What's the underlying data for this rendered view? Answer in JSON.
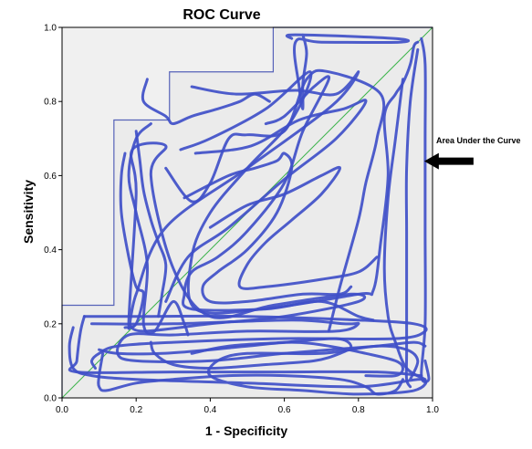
{
  "chart_data": {
    "type": "line",
    "title": "ROC Curve",
    "xlabel": "1 - Specificity",
    "ylabel": "Sensitivity",
    "xlim": [
      0,
      1
    ],
    "ylim": [
      0,
      1
    ],
    "xticks": [
      "0.0",
      "0.2",
      "0.4",
      "0.6",
      "0.8",
      "1.0"
    ],
    "yticks": [
      "0.0",
      "0.2",
      "0.4",
      "0.6",
      "0.8",
      "1.0"
    ],
    "grid": false,
    "legend": "none",
    "colors": {
      "plot_background": "#f0f0f0",
      "roc_line": "#5662b8",
      "reference_line": "#3cb44b",
      "scribble": "#3f4fc8",
      "arrow": "#000000"
    },
    "series": [
      {
        "x": [
          0,
          0,
          0.14,
          0.14,
          0.29,
          0.29,
          0.57,
          0.57,
          1.0
        ],
        "y": [
          0,
          0.25,
          0.25,
          0.75,
          0.75,
          0.88,
          0.88,
          1.0,
          1.0
        ]
      },
      {
        "x": [
          0,
          1
        ],
        "y": [
          0,
          1
        ]
      }
    ],
    "shaded_region": {
      "x": [
        0,
        0,
        0.14,
        0.14,
        0.29,
        0.29,
        0.57,
        0.57,
        1.0,
        1.0
      ],
      "y": [
        0,
        0.25,
        0.25,
        0.75,
        0.75,
        0.88,
        0.88,
        1.0,
        1.0,
        0
      ]
    },
    "scribble_paths": [
      [
        [
          0.62,
          0.97
        ],
        [
          0.63,
          0.98
        ],
        [
          0.9,
          0.97
        ],
        [
          0.91,
          0.96
        ],
        [
          0.7,
          0.96
        ],
        [
          0.63,
          0.96
        ],
        [
          0.64,
          0.84
        ],
        [
          0.65,
          0.78
        ],
        [
          0.65,
          0.85
        ],
        [
          0.66,
          0.93
        ],
        [
          0.65,
          0.98
        ]
      ],
      [
        [
          0.35,
          0.84
        ],
        [
          0.47,
          0.82
        ],
        [
          0.63,
          0.83
        ],
        [
          0.74,
          0.82
        ],
        [
          0.8,
          0.88
        ],
        [
          0.73,
          0.79
        ],
        [
          0.5,
          0.62
        ],
        [
          0.28,
          0.46
        ],
        [
          0.2,
          0.28
        ],
        [
          0.18,
          0.2
        ],
        [
          0.2,
          0.55
        ],
        [
          0.19,
          0.67
        ],
        [
          0.28,
          0.68
        ],
        [
          0.24,
          0.6
        ],
        [
          0.3,
          0.35
        ],
        [
          0.4,
          0.22
        ],
        [
          0.57,
          0.25
        ],
        [
          0.78,
          0.28
        ],
        [
          0.8,
          0.26
        ],
        [
          0.6,
          0.22
        ],
        [
          0.4,
          0.2
        ],
        [
          0.22,
          0.18
        ],
        [
          0.18,
          0.2
        ]
      ],
      [
        [
          0.36,
          0.66
        ],
        [
          0.51,
          0.68
        ],
        [
          0.64,
          0.75
        ],
        [
          0.76,
          0.78
        ],
        [
          0.82,
          0.8
        ],
        [
          0.74,
          0.7
        ],
        [
          0.6,
          0.59
        ],
        [
          0.45,
          0.46
        ],
        [
          0.34,
          0.38
        ],
        [
          0.28,
          0.26
        ]
      ],
      [
        [
          0.32,
          0.67
        ],
        [
          0.4,
          0.7
        ],
        [
          0.55,
          0.78
        ],
        [
          0.67,
          0.88
        ],
        [
          0.62,
          0.75
        ],
        [
          0.5,
          0.62
        ],
        [
          0.4,
          0.5
        ],
        [
          0.35,
          0.38
        ],
        [
          0.36,
          0.24
        ],
        [
          0.54,
          0.24
        ],
        [
          0.8,
          0.28
        ],
        [
          0.84,
          0.29
        ],
        [
          0.86,
          0.42
        ],
        [
          0.88,
          0.6
        ],
        [
          0.87,
          0.76
        ],
        [
          0.9,
          0.82
        ],
        [
          0.92,
          0.85
        ],
        [
          0.94,
          0.9
        ],
        [
          0.95,
          0.95
        ],
        [
          0.96,
          0.96
        ]
      ],
      [
        [
          0.28,
          0.62
        ],
        [
          0.35,
          0.53
        ],
        [
          0.4,
          0.58
        ],
        [
          0.45,
          0.7
        ],
        [
          0.5,
          0.71
        ],
        [
          0.6,
          0.72
        ],
        [
          0.66,
          0.86
        ],
        [
          0.72,
          0.88
        ],
        [
          0.86,
          0.82
        ],
        [
          0.85,
          0.7
        ],
        [
          0.82,
          0.58
        ],
        [
          0.8,
          0.48
        ],
        [
          0.75,
          0.3
        ],
        [
          0.72,
          0.18
        ]
      ],
      [
        [
          0.24,
          0.74
        ],
        [
          0.2,
          0.7
        ],
        [
          0.18,
          0.6
        ],
        [
          0.2,
          0.5
        ],
        [
          0.23,
          0.36
        ],
        [
          0.22,
          0.2
        ],
        [
          0.25,
          0.18
        ],
        [
          0.3,
          0.26
        ],
        [
          0.33,
          0.2
        ],
        [
          0.34,
          0.17
        ]
      ],
      [
        [
          0.17,
          0.66
        ],
        [
          0.16,
          0.6
        ],
        [
          0.16,
          0.5
        ],
        [
          0.18,
          0.38
        ],
        [
          0.2,
          0.3
        ],
        [
          0.22,
          0.28
        ],
        [
          0.2,
          0.2
        ],
        [
          0.17,
          0.19
        ]
      ],
      [
        [
          0.55,
          0.74
        ],
        [
          0.6,
          0.76
        ],
        [
          0.68,
          0.84
        ],
        [
          0.72,
          0.86
        ],
        [
          0.65,
          0.72
        ],
        [
          0.6,
          0.58
        ],
        [
          0.5,
          0.45
        ],
        [
          0.42,
          0.38
        ],
        [
          0.35,
          0.34
        ],
        [
          0.33,
          0.28
        ],
        [
          0.35,
          0.24
        ],
        [
          0.55,
          0.24
        ],
        [
          0.7,
          0.26
        ],
        [
          0.8,
          0.22
        ],
        [
          0.84,
          0.21
        ]
      ],
      [
        [
          0.23,
          0.86
        ],
        [
          0.22,
          0.8
        ],
        [
          0.28,
          0.76
        ],
        [
          0.3,
          0.74
        ],
        [
          0.35,
          0.76
        ],
        [
          0.42,
          0.78
        ],
        [
          0.48,
          0.8
        ],
        [
          0.52,
          0.82
        ],
        [
          0.56,
          0.8
        ]
      ],
      [
        [
          0.33,
          0.54
        ],
        [
          0.45,
          0.6
        ],
        [
          0.52,
          0.62
        ],
        [
          0.58,
          0.64
        ],
        [
          0.6,
          0.66
        ],
        [
          0.62,
          0.62
        ],
        [
          0.58,
          0.5
        ],
        [
          0.5,
          0.4
        ],
        [
          0.42,
          0.34
        ],
        [
          0.38,
          0.3
        ],
        [
          0.4,
          0.26
        ],
        [
          0.5,
          0.26
        ],
        [
          0.65,
          0.28
        ],
        [
          0.75,
          0.28
        ],
        [
          0.78,
          0.3
        ]
      ],
      [
        [
          0.4,
          0.46
        ],
        [
          0.5,
          0.52
        ],
        [
          0.6,
          0.55
        ],
        [
          0.7,
          0.6
        ],
        [
          0.75,
          0.62
        ],
        [
          0.7,
          0.55
        ],
        [
          0.62,
          0.48
        ],
        [
          0.55,
          0.42
        ],
        [
          0.5,
          0.36
        ],
        [
          0.48,
          0.3
        ],
        [
          0.55,
          0.3
        ],
        [
          0.7,
          0.32
        ],
        [
          0.8,
          0.34
        ],
        [
          0.85,
          0.38
        ]
      ],
      [
        [
          0.06,
          0.22
        ],
        [
          0.2,
          0.22
        ],
        [
          0.5,
          0.22
        ],
        [
          0.8,
          0.21
        ],
        [
          0.95,
          0.2
        ],
        [
          0.98,
          0.18
        ],
        [
          0.9,
          0.16
        ],
        [
          0.6,
          0.16
        ],
        [
          0.3,
          0.15
        ],
        [
          0.15,
          0.14
        ],
        [
          0.1,
          0.12
        ],
        [
          0.08,
          0.1
        ],
        [
          0.09,
          0.08
        ]
      ],
      [
        [
          0.06,
          0.22
        ],
        [
          0.05,
          0.18
        ],
        [
          0.04,
          0.1
        ],
        [
          0.04,
          0.07
        ],
        [
          0.3,
          0.07
        ],
        [
          0.6,
          0.07
        ],
        [
          0.85,
          0.07
        ],
        [
          0.97,
          0.06
        ]
      ],
      [
        [
          0.08,
          0.2
        ],
        [
          0.3,
          0.2
        ],
        [
          0.62,
          0.21
        ],
        [
          0.76,
          0.2
        ],
        [
          0.8,
          0.2
        ],
        [
          0.74,
          0.18
        ],
        [
          0.5,
          0.18
        ],
        [
          0.3,
          0.17
        ],
        [
          0.18,
          0.17
        ],
        [
          0.15,
          0.12
        ],
        [
          0.2,
          0.1
        ],
        [
          0.4,
          0.1
        ],
        [
          0.6,
          0.12
        ],
        [
          0.85,
          0.14
        ],
        [
          0.95,
          0.15
        ],
        [
          0.98,
          0.14
        ]
      ],
      [
        [
          0.03,
          0.19
        ],
        [
          0.02,
          0.14
        ],
        [
          0.03,
          0.08
        ],
        [
          0.08,
          0.06
        ],
        [
          0.2,
          0.05
        ],
        [
          0.5,
          0.04
        ],
        [
          0.8,
          0.03
        ],
        [
          0.97,
          0.05
        ],
        [
          0.95,
          0.02
        ],
        [
          0.8,
          0.01
        ],
        [
          0.65,
          0.02
        ],
        [
          0.5,
          0.03
        ],
        [
          0.4,
          0.06
        ],
        [
          0.42,
          0.1
        ],
        [
          0.5,
          0.12
        ],
        [
          0.7,
          0.12
        ],
        [
          0.85,
          0.14
        ],
        [
          0.93,
          0.13
        ],
        [
          0.96,
          0.1
        ],
        [
          0.94,
          0.05
        ]
      ],
      [
        [
          0.24,
          0.15
        ],
        [
          0.25,
          0.12
        ],
        [
          0.3,
          0.09
        ],
        [
          0.4,
          0.08
        ],
        [
          0.55,
          0.09
        ],
        [
          0.68,
          0.1
        ],
        [
          0.75,
          0.12
        ],
        [
          0.78,
          0.14
        ],
        [
          0.74,
          0.16
        ],
        [
          0.6,
          0.15
        ],
        [
          0.45,
          0.14
        ],
        [
          0.35,
          0.12
        ]
      ],
      [
        [
          0.1,
          0.13
        ],
        [
          0.15,
          0.12
        ],
        [
          0.27,
          0.12
        ],
        [
          0.4,
          0.13
        ],
        [
          0.5,
          0.14
        ],
        [
          0.62,
          0.15
        ],
        [
          0.72,
          0.14
        ],
        [
          0.82,
          0.12
        ],
        [
          0.9,
          0.1
        ],
        [
          0.92,
          0.08
        ],
        [
          0.9,
          0.06
        ],
        [
          0.82,
          0.06
        ]
      ],
      [
        [
          0.11,
          0.12
        ],
        [
          0.1,
          0.06
        ],
        [
          0.1,
          0.03
        ],
        [
          0.12,
          0.02
        ],
        [
          0.2,
          0.04
        ],
        [
          0.3,
          0.05
        ],
        [
          0.45,
          0.06
        ],
        [
          0.6,
          0.06
        ],
        [
          0.75,
          0.05
        ],
        [
          0.82,
          0.03
        ],
        [
          0.85,
          0.01
        ],
        [
          0.9,
          0.02
        ],
        [
          0.92,
          0.05
        ]
      ],
      [
        [
          0.2,
          0.72
        ],
        [
          0.21,
          0.64
        ],
        [
          0.22,
          0.56
        ],
        [
          0.24,
          0.48
        ],
        [
          0.26,
          0.42
        ],
        [
          0.28,
          0.36
        ],
        [
          0.27,
          0.28
        ],
        [
          0.26,
          0.22
        ]
      ],
      [
        [
          0.97,
          0.97
        ],
        [
          0.98,
          0.9
        ],
        [
          0.98,
          0.7
        ],
        [
          0.98,
          0.45
        ],
        [
          0.98,
          0.2
        ],
        [
          0.97,
          0.06
        ],
        [
          0.99,
          0.05
        ],
        [
          0.98,
          0.1
        ]
      ],
      [
        [
          0.96,
          0.94
        ],
        [
          0.94,
          0.8
        ],
        [
          0.93,
          0.62
        ],
        [
          0.93,
          0.45
        ],
        [
          0.93,
          0.28
        ],
        [
          0.93,
          0.12
        ],
        [
          0.93,
          0.05
        ],
        [
          0.94,
          0.03
        ]
      ],
      [
        [
          0.92,
          0.86
        ],
        [
          0.9,
          0.7
        ],
        [
          0.88,
          0.54
        ],
        [
          0.87,
          0.35
        ],
        [
          0.88,
          0.22
        ],
        [
          0.9,
          0.15
        ],
        [
          0.93,
          0.08
        ],
        [
          0.98,
          0.05
        ]
      ]
    ],
    "annotations": [
      {
        "text": "Area Under the Curve",
        "arrow_to": [
          0.98,
          0.64
        ]
      }
    ]
  }
}
